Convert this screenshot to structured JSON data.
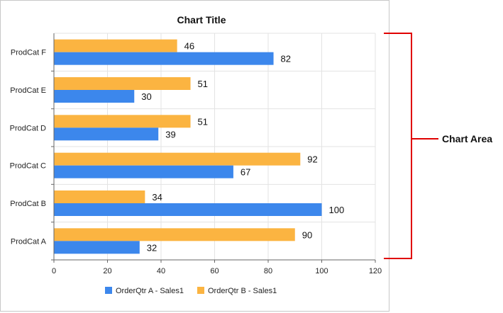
{
  "chart_data": {
    "type": "bar",
    "orientation": "horizontal",
    "title": "Chart Title",
    "categories": [
      "ProdCat A",
      "ProdCat B",
      "ProdCat C",
      "ProdCat D",
      "ProdCat E",
      "ProdCat F"
    ],
    "series": [
      {
        "name": "OrderQtr A - Sales1",
        "color": "#3c87ec",
        "values": [
          32,
          100,
          67,
          39,
          30,
          82
        ]
      },
      {
        "name": "OrderQtr B - Sales1",
        "color": "#fbb441",
        "values": [
          90,
          34,
          92,
          51,
          51,
          46
        ]
      }
    ],
    "xlim": [
      0,
      120
    ],
    "xticks": [
      0,
      20,
      40,
      60,
      80,
      100,
      120
    ],
    "grid": true,
    "legend_position": "bottom"
  },
  "annotation": {
    "label": "Chart Area",
    "bracket_color": "#e00000"
  }
}
